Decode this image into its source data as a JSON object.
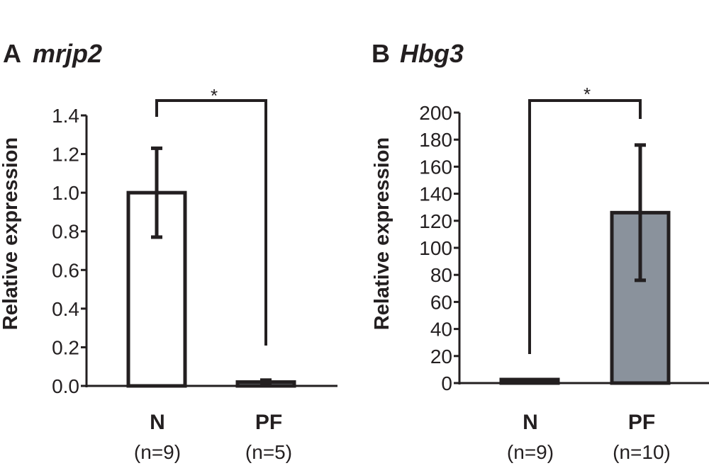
{
  "chart_data": [
    {
      "type": "bar",
      "panel": "A",
      "title": "mrjp2",
      "ylabel": "Relative expression",
      "ylim": [
        0,
        1.4
      ],
      "yticks": [
        "0.0",
        "0.2",
        "0.4",
        "0.6",
        "0.8",
        "1.0",
        "1.2",
        "1.4"
      ],
      "categories": [
        "N",
        "PF"
      ],
      "sample_sizes": [
        "(n=9)",
        "(n=5)"
      ],
      "values": [
        1.0,
        0.02
      ],
      "error": [
        0.23,
        0.01
      ],
      "bar_colors": [
        "#ffffff",
        "#8a929c"
      ],
      "significance": "*"
    },
    {
      "type": "bar",
      "panel": "B",
      "title": "Hbg3",
      "ylabel": "Relative expression",
      "ylim": [
        0,
        200
      ],
      "yticks": [
        "0",
        "20",
        "40",
        "60",
        "80",
        "100",
        "120",
        "140",
        "160",
        "180",
        "200"
      ],
      "categories": [
        "N",
        "PF"
      ],
      "sample_sizes": [
        "(n=9)",
        "(n=10)"
      ],
      "values": [
        1,
        126
      ],
      "error": [
        0,
        50
      ],
      "bar_colors": [
        "#ffffff",
        "#8a929c"
      ],
      "significance": "*"
    }
  ]
}
